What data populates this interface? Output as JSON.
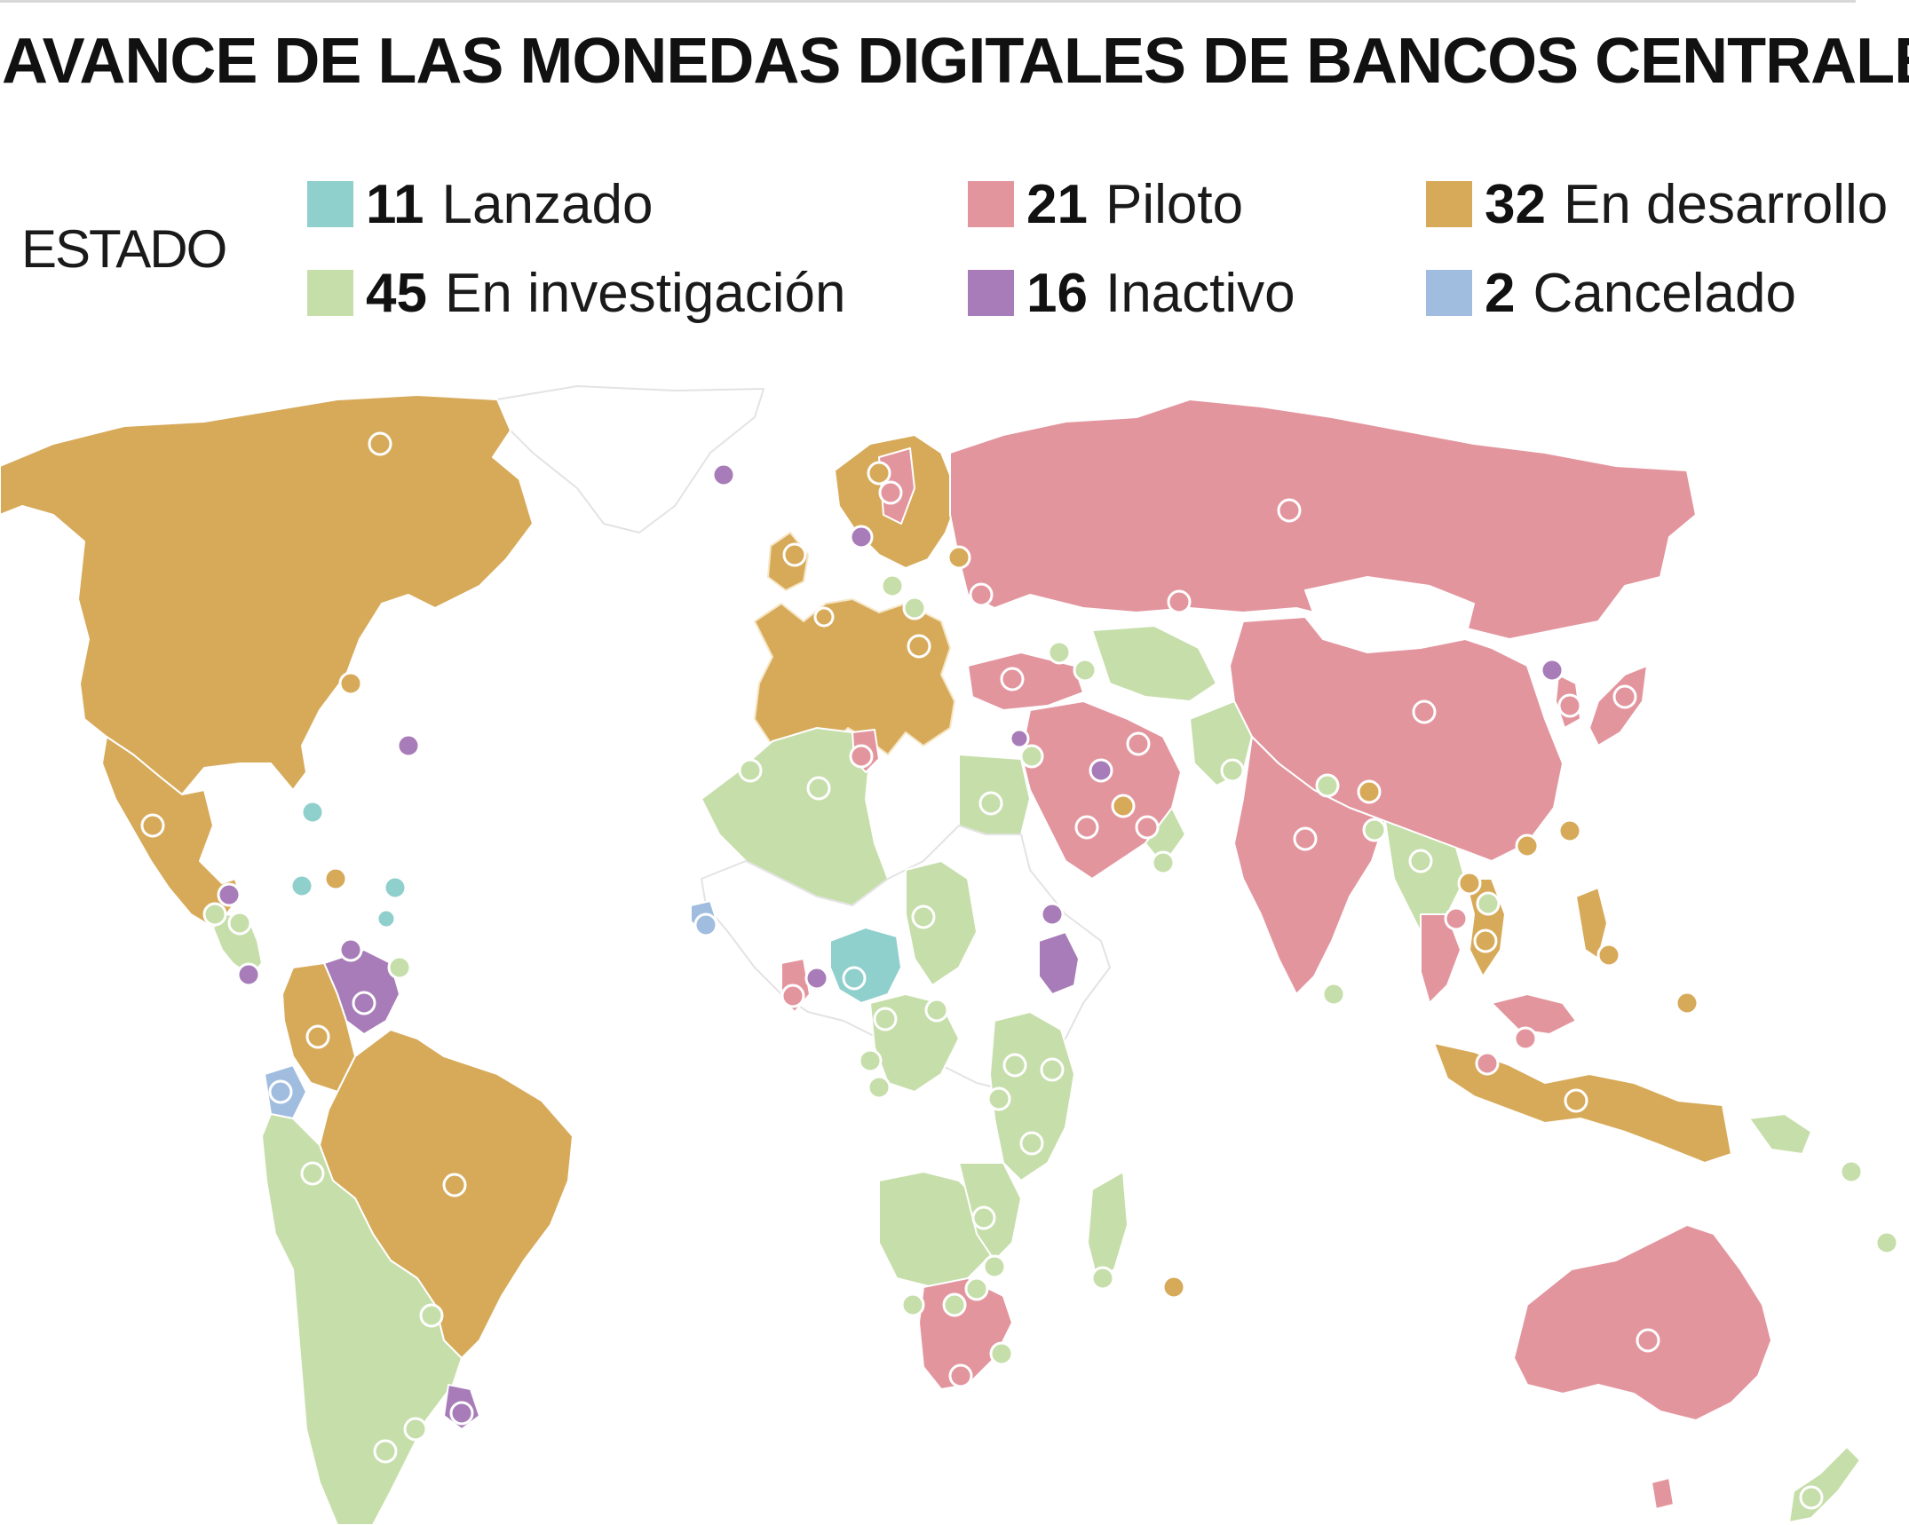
{
  "title": "AVANCE DE LAS MONEDAS DIGITALES DE BANCOS CENTRALES",
  "legend": {
    "label": "ESTADO",
    "items": [
      {
        "count": "11",
        "label": "Lanzado",
        "color": "#8fcfcc"
      },
      {
        "count": "21",
        "label": "Piloto",
        "color": "#e3959e"
      },
      {
        "count": "32",
        "label": "En desarrollo",
        "color": "#d7aa5a"
      },
      {
        "count": "45",
        "label": "En investigación",
        "color": "#c6deaa"
      },
      {
        "count": "16",
        "label": "Inactivo",
        "color": "#a77cb8"
      },
      {
        "count": "2",
        "label": "Cancelado",
        "color": "#a0bde0"
      }
    ]
  }
}
